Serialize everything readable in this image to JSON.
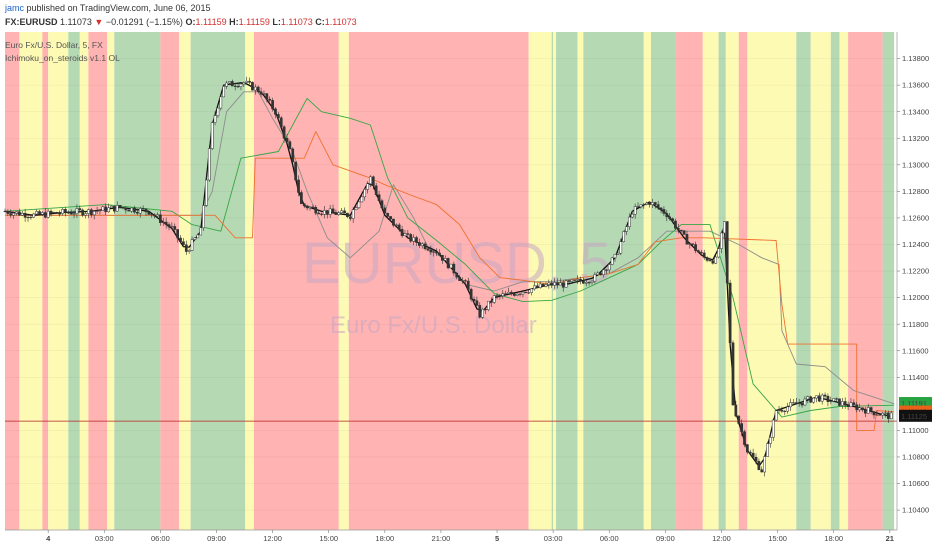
{
  "header": {
    "user": "jamc",
    "published": "published on TradingView.com, June 06, 2015",
    "symbol": "FX:EURUSD",
    "last": "1.11073",
    "arrow": "▼",
    "change": "−0.01291 (−1.15%)",
    "o_label": "O:",
    "o_value": "1.11159",
    "h_label": "H:",
    "h_value": "1.11159",
    "l_label": "L:",
    "l_value": "1.11073",
    "c_label": "C:",
    "c_value": "1.11073"
  },
  "legend": {
    "instrument": "Euro Fx/U.S. Dollar, 5, FX",
    "indicator": "Ichimoku_on_steroids v1.1 OL"
  },
  "watermark": {
    "symbol": "EURUSD, 5",
    "name": "Euro Fx/U.S. Dollar"
  },
  "colors": {
    "green": "#b5d9b3",
    "red": "#ffb3b3",
    "yellow": "#fdfab4",
    "candle": "#333333",
    "tenkan": "#111111",
    "kijun": "#f07130",
    "chikou": "#36a646",
    "span": "#8c8c8c",
    "price_line": "#b22222",
    "tag_green": "#27a33f",
    "tag_orange": "#e8621a",
    "tag_black": "#111111",
    "arrow_red": "#d32f2f"
  },
  "chart_data": {
    "type": "candlestick",
    "title": "Euro Fx/U.S. Dollar, 5, FX",
    "ylim": [
      1.1025,
      1.14
    ],
    "y_ticks": [
      "1.13800",
      "1.13600",
      "1.13400",
      "1.13200",
      "1.13000",
      "1.12800",
      "1.12600",
      "1.12400",
      "1.12200",
      "1.12000",
      "1.11800",
      "1.11600",
      "1.11400",
      "1.11000",
      "1.10800",
      "1.10600",
      "1.10400"
    ],
    "x_ticks": [
      "4",
      "03:00",
      "06:00",
      "09:00",
      "12:00",
      "15:00",
      "18:00",
      "21:00",
      "5",
      "03:00",
      "06:00",
      "09:00",
      "12:00",
      "15:00",
      "18:00",
      "21"
    ],
    "price_tags": [
      {
        "label": "1.11191",
        "value": 1.11191,
        "color": "tag_green"
      },
      {
        "label": "1.11142",
        "value": 1.11142,
        "color": "tag_orange"
      },
      {
        "label": "1.11125",
        "value": 1.11125,
        "color": "tag_black"
      }
    ],
    "price_line": 1.1107,
    "bands": [
      {
        "from": 0.0,
        "to": 0.5,
        "color": "red"
      },
      {
        "from": 0.5,
        "to": 1.3,
        "color": "yellow"
      },
      {
        "from": 1.3,
        "to": 1.5,
        "color": "red"
      },
      {
        "from": 1.5,
        "to": 2.2,
        "color": "yellow"
      },
      {
        "from": 2.2,
        "to": 2.6,
        "color": "green"
      },
      {
        "from": 2.6,
        "to": 2.9,
        "color": "yellow"
      },
      {
        "from": 2.9,
        "to": 3.55,
        "color": "red"
      },
      {
        "from": 3.55,
        "to": 3.8,
        "color": "yellow"
      },
      {
        "from": 3.8,
        "to": 5.4,
        "color": "green"
      },
      {
        "from": 5.4,
        "to": 6.05,
        "color": "red"
      },
      {
        "from": 6.05,
        "to": 6.45,
        "color": "yellow"
      },
      {
        "from": 6.45,
        "to": 8.35,
        "color": "green"
      },
      {
        "from": 8.35,
        "to": 8.65,
        "color": "yellow"
      },
      {
        "from": 8.65,
        "to": 11.6,
        "color": "red"
      },
      {
        "from": 11.6,
        "to": 11.95,
        "color": "yellow"
      },
      {
        "from": 11.95,
        "to": 18.2,
        "color": "red"
      },
      {
        "from": 18.2,
        "to": 19.0,
        "color": "yellow"
      },
      {
        "from": 19.0,
        "to": 19.05,
        "color": "green"
      },
      {
        "from": 19.05,
        "to": 19.15,
        "color": "yellow"
      },
      {
        "from": 19.15,
        "to": 19.9,
        "color": "green"
      },
      {
        "from": 19.9,
        "to": 20.1,
        "color": "yellow"
      },
      {
        "from": 20.1,
        "to": 22.2,
        "color": "green"
      },
      {
        "from": 22.2,
        "to": 22.45,
        "color": "yellow"
      },
      {
        "from": 22.45,
        "to": 23.3,
        "color": "green"
      },
      {
        "from": 23.3,
        "to": 24.25,
        "color": "red"
      },
      {
        "from": 24.25,
        "to": 24.8,
        "color": "yellow"
      },
      {
        "from": 24.8,
        "to": 25.05,
        "color": "green"
      },
      {
        "from": 25.05,
        "to": 25.5,
        "color": "yellow"
      },
      {
        "from": 25.5,
        "to": 25.8,
        "color": "red"
      },
      {
        "from": 25.8,
        "to": 27.5,
        "color": "yellow"
      },
      {
        "from": 27.5,
        "to": 28.0,
        "color": "green"
      },
      {
        "from": 28.0,
        "to": 28.7,
        "color": "yellow"
      },
      {
        "from": 28.7,
        "to": 29.0,
        "color": "green"
      },
      {
        "from": 29.0,
        "to": 29.3,
        "color": "yellow"
      },
      {
        "from": 29.3,
        "to": 30.5,
        "color": "red"
      },
      {
        "from": 30.5,
        "to": 30.9,
        "color": "green"
      }
    ],
    "close_path": [
      [
        0,
        1.1265
      ],
      [
        1.0,
        1.1262
      ],
      [
        2.0,
        1.1264
      ],
      [
        3.0,
        1.1265
      ],
      [
        4.0,
        1.1268
      ],
      [
        5.0,
        1.1265
      ],
      [
        5.8,
        1.1252
      ],
      [
        6.3,
        1.1235
      ],
      [
        6.8,
        1.125
      ],
      [
        7.2,
        1.133
      ],
      [
        7.6,
        1.136
      ],
      [
        8.3,
        1.1362
      ],
      [
        8.9,
        1.1355
      ],
      [
        9.4,
        1.134
      ],
      [
        9.9,
        1.131
      ],
      [
        10.3,
        1.127
      ],
      [
        11.0,
        1.1265
      ],
      [
        12.0,
        1.1262
      ],
      [
        12.7,
        1.129
      ],
      [
        13.2,
        1.1262
      ],
      [
        14.0,
        1.1245
      ],
      [
        15.0,
        1.1235
      ],
      [
        16.0,
        1.121
      ],
      [
        16.5,
        1.1187
      ],
      [
        17.0,
        1.12
      ],
      [
        18.0,
        1.1205
      ],
      [
        19.0,
        1.121
      ],
      [
        19.5,
        1.121
      ],
      [
        20.5,
        1.1215
      ],
      [
        21.2,
        1.123
      ],
      [
        21.8,
        1.1265
      ],
      [
        22.4,
        1.1272
      ],
      [
        23.0,
        1.1263
      ],
      [
        23.6,
        1.1245
      ],
      [
        24.3,
        1.123
      ],
      [
        24.7,
        1.1228
      ],
      [
        25.0,
        1.1255
      ],
      [
        25.3,
        1.112
      ],
      [
        25.8,
        1.1085
      ],
      [
        26.3,
        1.107
      ],
      [
        26.8,
        1.1115
      ],
      [
        27.5,
        1.112
      ],
      [
        28.2,
        1.1125
      ],
      [
        28.8,
        1.1122
      ],
      [
        29.5,
        1.1118
      ],
      [
        30.5,
        1.1112
      ],
      [
        30.9,
        1.111
      ]
    ],
    "kijun": [
      [
        0,
        1.1262
      ],
      [
        7.3,
        1.1262
      ],
      [
        8.0,
        1.1245
      ],
      [
        8.6,
        1.1245
      ],
      [
        8.7,
        1.1305
      ],
      [
        10.4,
        1.1305
      ],
      [
        10.8,
        1.1325
      ],
      [
        11.4,
        1.13
      ],
      [
        12.7,
        1.129
      ],
      [
        13.2,
        1.1285
      ],
      [
        14.0,
        1.1278
      ],
      [
        15.0,
        1.127
      ],
      [
        15.8,
        1.1255
      ],
      [
        16.5,
        1.123
      ],
      [
        17.2,
        1.1215
      ],
      [
        18.0,
        1.1213
      ],
      [
        19.0,
        1.121
      ],
      [
        20.0,
        1.1215
      ],
      [
        21.0,
        1.1218
      ],
      [
        22.0,
        1.1225
      ],
      [
        22.6,
        1.1242
      ],
      [
        23.5,
        1.1245
      ],
      [
        24.3,
        1.1245
      ],
      [
        26.8,
        1.1243
      ],
      [
        27.0,
        1.1195
      ],
      [
        27.2,
        1.1165
      ],
      [
        29.6,
        1.1165
      ],
      [
        29.6,
        1.11
      ],
      [
        30.2,
        1.11
      ],
      [
        30.3,
        1.1115
      ],
      [
        30.9,
        1.1114
      ]
    ],
    "chikou": [
      [
        0,
        1.1265
      ],
      [
        3.5,
        1.127
      ],
      [
        5.8,
        1.1265
      ],
      [
        6.5,
        1.1255
      ],
      [
        7.5,
        1.125
      ],
      [
        8.2,
        1.1305
      ],
      [
        9.5,
        1.131
      ],
      [
        10.5,
        1.135
      ],
      [
        11.0,
        1.134
      ],
      [
        12.0,
        1.1335
      ],
      [
        12.7,
        1.133
      ],
      [
        13.3,
        1.129
      ],
      [
        14.0,
        1.126
      ],
      [
        15.0,
        1.1243
      ],
      [
        16.0,
        1.1225
      ],
      [
        17.0,
        1.1203
      ],
      [
        18.0,
        1.1197
      ],
      [
        19.0,
        1.1198
      ],
      [
        20.0,
        1.1205
      ],
      [
        21.0,
        1.1215
      ],
      [
        22.0,
        1.1225
      ],
      [
        22.8,
        1.1242
      ],
      [
        23.5,
        1.1255
      ],
      [
        24.5,
        1.1255
      ],
      [
        25.3,
        1.12
      ],
      [
        26.0,
        1.1135
      ],
      [
        27.0,
        1.111
      ],
      [
        28.0,
        1.1115
      ],
      [
        29.0,
        1.1118
      ],
      [
        30.9,
        1.1119
      ]
    ],
    "span": [
      [
        0,
        1.1262
      ],
      [
        6.8,
        1.1262
      ],
      [
        7.2,
        1.128
      ],
      [
        7.7,
        1.134
      ],
      [
        8.3,
        1.1355
      ],
      [
        8.8,
        1.1355
      ],
      [
        9.3,
        1.1335
      ],
      [
        10.0,
        1.131
      ],
      [
        10.5,
        1.128
      ],
      [
        11.2,
        1.1245
      ],
      [
        12.0,
        1.123
      ],
      [
        13.0,
        1.125
      ],
      [
        13.5,
        1.1285
      ],
      [
        14.2,
        1.126
      ],
      [
        14.7,
        1.1238
      ],
      [
        15.3,
        1.1228
      ],
      [
        16.0,
        1.121
      ],
      [
        17.0,
        1.1205
      ],
      [
        18.0,
        1.1212
      ],
      [
        19.0,
        1.1212
      ],
      [
        20.0,
        1.1215
      ],
      [
        21.0,
        1.1218
      ],
      [
        22.0,
        1.123
      ],
      [
        23.0,
        1.125
      ],
      [
        24.5,
        1.125
      ],
      [
        25.5,
        1.124
      ],
      [
        26.3,
        1.123
      ],
      [
        26.9,
        1.1225
      ],
      [
        27.0,
        1.1175
      ],
      [
        27.5,
        1.115
      ],
      [
        28.5,
        1.1148
      ],
      [
        29.5,
        1.113
      ],
      [
        30.2,
        1.1125
      ],
      [
        30.9,
        1.112
      ]
    ],
    "x_extent": [
      0,
      31
    ]
  }
}
